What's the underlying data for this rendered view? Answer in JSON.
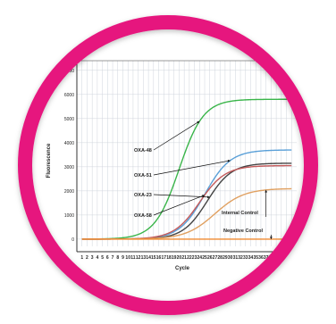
{
  "chart_data": {
    "type": "line",
    "title": "",
    "xlabel": "Cycle",
    "ylabel": "Fluorescence",
    "xlim": [
      0,
      43
    ],
    "ylim": [
      -300,
      7400
    ],
    "x_ticks": [
      1,
      2,
      3,
      4,
      5,
      6,
      7,
      8,
      9,
      10,
      11,
      12,
      13,
      14,
      15,
      16,
      17,
      18,
      19,
      20,
      21,
      22,
      23,
      24,
      25,
      26,
      27,
      28,
      29,
      30,
      31,
      32,
      33,
      34,
      35,
      36,
      37,
      38,
      39,
      40,
      41,
      42
    ],
    "x_tick_labels": [
      "1",
      "2",
      "3",
      "4",
      "5",
      "6",
      "7",
      "8",
      "9",
      "10",
      "11",
      "12",
      "13",
      "14",
      "15",
      "16",
      "17",
      "18",
      "19",
      "20",
      "21",
      "22",
      "23",
      "24",
      "25",
      "26",
      "27",
      "28",
      "29",
      "30",
      "31",
      "32",
      "33",
      "34",
      "35",
      "36",
      "37",
      "38",
      "39",
      "40",
      "41",
      "42"
    ],
    "y_ticks": [
      0,
      1000,
      2000,
      3000,
      4000,
      5000,
      6000,
      7000
    ],
    "y_tick_labels": [
      "0",
      "1000",
      "2000",
      "3000",
      "4000",
      "5000",
      "6000",
      "7000"
    ],
    "grid": true,
    "series": [
      {
        "name": "OXA-48",
        "color": "#3ab54a",
        "x0": 20,
        "plateau": 5800,
        "steep": 0.42
      },
      {
        "name": "OXA-51",
        "color": "#5aa0d8",
        "x0": 25,
        "plateau": 3700,
        "steep": 0.4
      },
      {
        "name": "OXA-23",
        "color": "#444444",
        "x0": 25.5,
        "plateau": 3150,
        "steep": 0.42
      },
      {
        "name": "OXA-58",
        "color": "#c45a5a",
        "x0": 24,
        "plateau": 3050,
        "steep": 0.4
      },
      {
        "name": "Internal Control",
        "color": "#e0a060",
        "x0": 27,
        "plateau": 2100,
        "steep": 0.35
      },
      {
        "name": "Negative Control",
        "color": "#f08a30",
        "x0": 0,
        "plateau": 0,
        "steep": 0
      }
    ],
    "annotations": [
      {
        "text": "OXA-48",
        "series": "OXA-48"
      },
      {
        "text": "OXA-51",
        "series": "OXA-51"
      },
      {
        "text": "OXA-23",
        "series": "OXA-23"
      },
      {
        "text": "OXA-58",
        "series": "OXA-58"
      },
      {
        "text": "Internal Control",
        "series": "Internal Control"
      },
      {
        "text": "Negative Control",
        "series": "Negative Control"
      }
    ]
  },
  "colors": {
    "ring": "#e6157e",
    "plot_bg": "#ffffff",
    "grid": "#cfd4dc"
  }
}
